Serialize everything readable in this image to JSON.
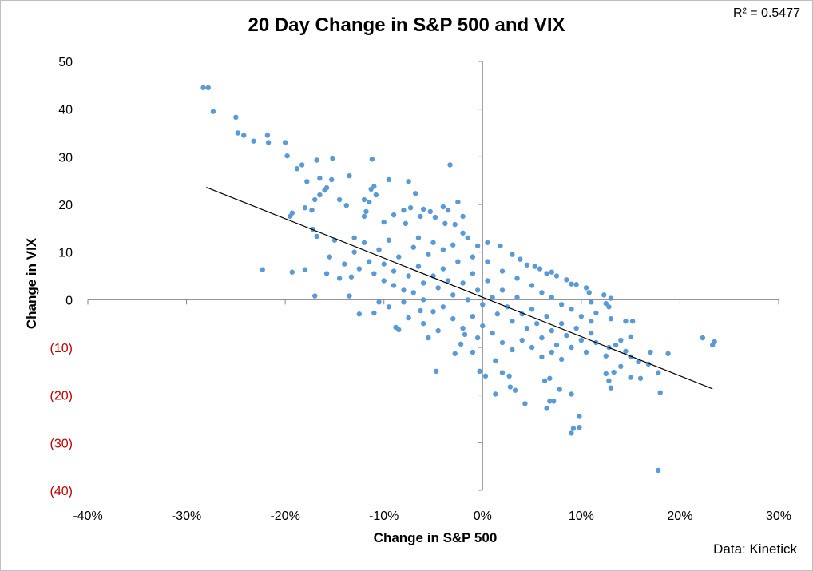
{
  "chart_data": {
    "type": "scatter",
    "title": "20 Day Change in S&P 500 and VIX",
    "xlabel": "Change in S&P 500",
    "ylabel": "Change in VIX",
    "annotation": "R² = 0.5477",
    "source": "Data: Kinetick",
    "xlim": [
      -40,
      30
    ],
    "ylim": [
      -40,
      50
    ],
    "x_ticks": [
      {
        "value": -40,
        "label": "-40%"
      },
      {
        "value": -30,
        "label": "-30%"
      },
      {
        "value": -20,
        "label": "-20%"
      },
      {
        "value": -10,
        "label": "-10%"
      },
      {
        "value": 0,
        "label": "0%"
      },
      {
        "value": 10,
        "label": "10%"
      },
      {
        "value": 20,
        "label": "20%"
      },
      {
        "value": 30,
        "label": "30%"
      }
    ],
    "y_ticks": [
      {
        "value": 50,
        "label": "50"
      },
      {
        "value": 40,
        "label": "40"
      },
      {
        "value": 30,
        "label": "30"
      },
      {
        "value": 20,
        "label": "20"
      },
      {
        "value": 10,
        "label": "10"
      },
      {
        "value": 0,
        "label": "0"
      },
      {
        "value": -10,
        "label": "(10)"
      },
      {
        "value": -20,
        "label": "(20)"
      },
      {
        "value": -30,
        "label": "(30)"
      },
      {
        "value": -40,
        "label": "(40)"
      }
    ],
    "grid": false,
    "colors": {
      "points": "#5b9bd5",
      "trendline": "#000000",
      "negative_tick": "#c00000",
      "positive_tick": "#000000"
    },
    "trendline": {
      "x": [
        -28.0,
        23.3
      ],
      "y": [
        23.6,
        -18.7
      ]
    },
    "series": [
      {
        "points": [
          [
            -28.3,
            44.5
          ],
          [
            -27.8,
            44.5
          ],
          [
            -27.3,
            39.5
          ],
          [
            -25.0,
            38.3
          ],
          [
            -24.8,
            35.0
          ],
          [
            -24.2,
            34.5
          ],
          [
            -23.2,
            33.3
          ],
          [
            -21.8,
            34.5
          ],
          [
            -21.7,
            33.0
          ],
          [
            -20.0,
            33.0
          ],
          [
            -19.8,
            30.2
          ],
          [
            -18.8,
            27.5
          ],
          [
            -18.3,
            28.3
          ],
          [
            -16.8,
            29.3
          ],
          [
            -15.2,
            29.7
          ],
          [
            -17.8,
            24.8
          ],
          [
            -16.5,
            25.5
          ],
          [
            -15.8,
            23.5
          ],
          [
            -15.3,
            25.2
          ],
          [
            -13.5,
            26.0
          ],
          [
            -16.0,
            23.0
          ],
          [
            -16.5,
            22.0
          ],
          [
            -17.0,
            21.0
          ],
          [
            -14.5,
            21.0
          ],
          [
            -13.8,
            19.8
          ],
          [
            -12.0,
            21.0
          ],
          [
            -11.3,
            23.2
          ],
          [
            -11.0,
            23.8
          ],
          [
            -10.8,
            22.0
          ],
          [
            -11.8,
            18.5
          ],
          [
            -12.0,
            17.5
          ],
          [
            -11.5,
            20.5
          ],
          [
            -9.5,
            25.2
          ],
          [
            -7.5,
            24.8
          ],
          [
            -6.8,
            22.3
          ],
          [
            -3.3,
            28.3
          ],
          [
            -11.2,
            29.5
          ],
          [
            -19.3,
            18.2
          ],
          [
            -19.5,
            17.5
          ],
          [
            -18.0,
            19.3
          ],
          [
            -17.3,
            18.8
          ],
          [
            -17.2,
            14.8
          ],
          [
            -16.8,
            13.3
          ],
          [
            -22.3,
            6.3
          ],
          [
            -19.3,
            5.8
          ],
          [
            -18.0,
            6.3
          ],
          [
            -17.0,
            0.8
          ],
          [
            -15.8,
            5.5
          ],
          [
            -14.5,
            4.5
          ],
          [
            -13.3,
            4.8
          ],
          [
            -14.0,
            7.5
          ],
          [
            -15.5,
            9.0
          ],
          [
            -15.0,
            12.5
          ],
          [
            -13.0,
            10.0
          ],
          [
            -13.5,
            0.8
          ],
          [
            -12.5,
            -3.0
          ],
          [
            -11.0,
            -2.8
          ],
          [
            -10.5,
            -0.5
          ],
          [
            -9.5,
            -1.5
          ],
          [
            -8.8,
            -5.8
          ],
          [
            -8.5,
            -6.3
          ],
          [
            -7.5,
            -3.8
          ],
          [
            -6.3,
            -2.3
          ],
          [
            -6.0,
            -5.0
          ],
          [
            -5.5,
            -8.0
          ],
          [
            -4.5,
            -6.5
          ],
          [
            -4.7,
            -15.0
          ],
          [
            -2.8,
            -11.3
          ],
          [
            -2.2,
            -9.3
          ],
          [
            -1.8,
            -7.3
          ],
          [
            -1.0,
            -11.0
          ],
          [
            -0.5,
            -8.0
          ],
          [
            -0.3,
            -15.0
          ],
          [
            0.3,
            -16.0
          ],
          [
            1.3,
            -12.8
          ],
          [
            2.0,
            -15.3
          ],
          [
            2.7,
            -16.0
          ],
          [
            1.3,
            -19.8
          ],
          [
            2.8,
            -18.3
          ],
          [
            3.3,
            -19.0
          ],
          [
            4.3,
            -21.8
          ],
          [
            6.3,
            -17.0
          ],
          [
            6.8,
            -16.5
          ],
          [
            6.5,
            -22.8
          ],
          [
            6.8,
            -21.3
          ],
          [
            7.2,
            -21.3
          ],
          [
            7.8,
            -18.8
          ],
          [
            9.0,
            -19.8
          ],
          [
            9.0,
            -28.0
          ],
          [
            9.2,
            -27.0
          ],
          [
            9.8,
            -24.5
          ],
          [
            9.8,
            -26.8
          ],
          [
            12.8,
            -17.0
          ],
          [
            12.5,
            -15.5
          ],
          [
            13.0,
            -18.5
          ],
          [
            13.3,
            -15.2
          ],
          [
            14.0,
            -14.0
          ],
          [
            15.0,
            -16.3
          ],
          [
            16.0,
            -16.5
          ],
          [
            15.8,
            -13.0
          ],
          [
            15.0,
            -12.0
          ],
          [
            16.8,
            -13.5
          ],
          [
            17.0,
            -11.0
          ],
          [
            17.8,
            -15.3
          ],
          [
            18.0,
            -19.5
          ],
          [
            17.8,
            -35.8
          ],
          [
            18.8,
            -11.3
          ],
          [
            22.3,
            -8.0
          ],
          [
            23.3,
            -9.5
          ],
          [
            23.5,
            -8.8
          ],
          [
            12.5,
            -11.8
          ],
          [
            12.8,
            -10.0
          ],
          [
            13.5,
            -9.5
          ],
          [
            14.5,
            -10.8
          ],
          [
            14.0,
            -8.5
          ],
          [
            15.0,
            -7.8
          ],
          [
            15.2,
            -4.5
          ],
          [
            14.5,
            -4.5
          ],
          [
            13.0,
            -4.0
          ],
          [
            12.8,
            -1.5
          ],
          [
            12.5,
            -0.8
          ],
          [
            13.0,
            0.3
          ],
          [
            12.3,
            1.0
          ],
          [
            11.5,
            -2.8
          ],
          [
            11.0,
            -0.5
          ],
          [
            10.8,
            1.5
          ],
          [
            10.5,
            2.5
          ],
          [
            9.5,
            3.2
          ],
          [
            9.0,
            3.3
          ],
          [
            8.5,
            4.2
          ],
          [
            7.5,
            5.0
          ],
          [
            7.0,
            5.8
          ],
          [
            6.5,
            5.5
          ],
          [
            5.8,
            6.5
          ],
          [
            5.3,
            7.0
          ],
          [
            4.5,
            7.3
          ],
          [
            3.8,
            8.5
          ],
          [
            3.0,
            9.5
          ],
          [
            1.8,
            11.3
          ],
          [
            0.5,
            12.0
          ],
          [
            -0.5,
            11.3
          ],
          [
            -1.5,
            13.0
          ],
          [
            -2.0,
            14.0
          ],
          [
            -2.8,
            15.8
          ],
          [
            -3.8,
            16.0
          ],
          [
            -4.8,
            17.3
          ],
          [
            -5.3,
            18.5
          ],
          [
            -6.3,
            17.5
          ],
          [
            -7.8,
            16.0
          ],
          [
            -7.3,
            19.3
          ],
          [
            -8.0,
            18.8
          ],
          [
            -9.0,
            17.8
          ],
          [
            -10.0,
            16.3
          ],
          [
            -3.5,
            18.8
          ],
          [
            -2.5,
            20.5
          ],
          [
            -2.0,
            17.5
          ],
          [
            -6.0,
            19.0
          ],
          [
            -4.0,
            19.5
          ],
          [
            -10.0,
            4.0
          ],
          [
            -9.0,
            3.0
          ],
          [
            -8.0,
            2.0
          ],
          [
            -7.5,
            5.0
          ],
          [
            -6.5,
            7.0
          ],
          [
            -6.0,
            3.5
          ],
          [
            -5.5,
            9.5
          ],
          [
            -5.0,
            5.0
          ],
          [
            -4.5,
            2.5
          ],
          [
            -4.0,
            6.5
          ],
          [
            -3.5,
            4.0
          ],
          [
            -3.0,
            1.0
          ],
          [
            -2.5,
            8.0
          ],
          [
            -2.0,
            3.5
          ],
          [
            -1.5,
            0.0
          ],
          [
            -1.0,
            5.5
          ],
          [
            -0.5,
            2.0
          ],
          [
            0.0,
            -1.0
          ],
          [
            0.5,
            4.0
          ],
          [
            1.0,
            0.5
          ],
          [
            1.5,
            -3.0
          ],
          [
            2.0,
            2.0
          ],
          [
            2.5,
            -1.5
          ],
          [
            3.0,
            -4.5
          ],
          [
            3.5,
            0.5
          ],
          [
            4.0,
            -3.0
          ],
          [
            4.5,
            -6.0
          ],
          [
            5.0,
            -2.0
          ],
          [
            5.5,
            -5.0
          ],
          [
            6.0,
            -8.0
          ],
          [
            6.5,
            -3.5
          ],
          [
            7.0,
            -6.5
          ],
          [
            7.5,
            -9.5
          ],
          [
            8.0,
            -5.0
          ],
          [
            8.5,
            -7.5
          ],
          [
            9.0,
            -10.0
          ],
          [
            9.5,
            -6.0
          ],
          [
            10.0,
            -8.5
          ],
          [
            10.5,
            -11.0
          ],
          [
            11.0,
            -7.0
          ],
          [
            11.5,
            -9.0
          ],
          [
            -7.0,
            11.0
          ],
          [
            -8.5,
            9.0
          ],
          [
            -9.5,
            12.5
          ],
          [
            -10.5,
            10.5
          ],
          [
            -11.5,
            8.0
          ],
          [
            -12.0,
            12.0
          ],
          [
            -6.5,
            13.0
          ],
          [
            -5.0,
            12.0
          ],
          [
            -4.0,
            10.5
          ],
          [
            -3.0,
            11.5
          ],
          [
            -1.0,
            9.0
          ],
          [
            0.5,
            8.0
          ],
          [
            2.0,
            6.0
          ],
          [
            3.5,
            4.5
          ],
          [
            5.0,
            3.0
          ],
          [
            6.0,
            1.5
          ],
          [
            7.0,
            0.5
          ],
          [
            8.0,
            -1.0
          ],
          [
            9.0,
            -2.0
          ],
          [
            10.0,
            -3.5
          ],
          [
            11.0,
            -4.5
          ],
          [
            -3.0,
            -4.0
          ],
          [
            -2.0,
            -6.0
          ],
          [
            -1.0,
            -3.5
          ],
          [
            0.0,
            -5.5
          ],
          [
            1.0,
            -7.0
          ],
          [
            2.0,
            -9.0
          ],
          [
            3.0,
            -10.5
          ],
          [
            4.0,
            -8.5
          ],
          [
            5.0,
            -10.0
          ],
          [
            6.0,
            -12.0
          ],
          [
            7.0,
            -11.0
          ],
          [
            8.0,
            -12.5
          ],
          [
            -4.0,
            -1.5
          ],
          [
            -5.0,
            -2.5
          ],
          [
            -6.0,
            0.0
          ],
          [
            -7.0,
            1.5
          ],
          [
            -8.0,
            -0.5
          ],
          [
            -9.0,
            6.0
          ],
          [
            -10.0,
            7.5
          ],
          [
            -11.0,
            5.5
          ],
          [
            -12.5,
            6.5
          ],
          [
            -13.0,
            13.0
          ]
        ]
      }
    ]
  }
}
